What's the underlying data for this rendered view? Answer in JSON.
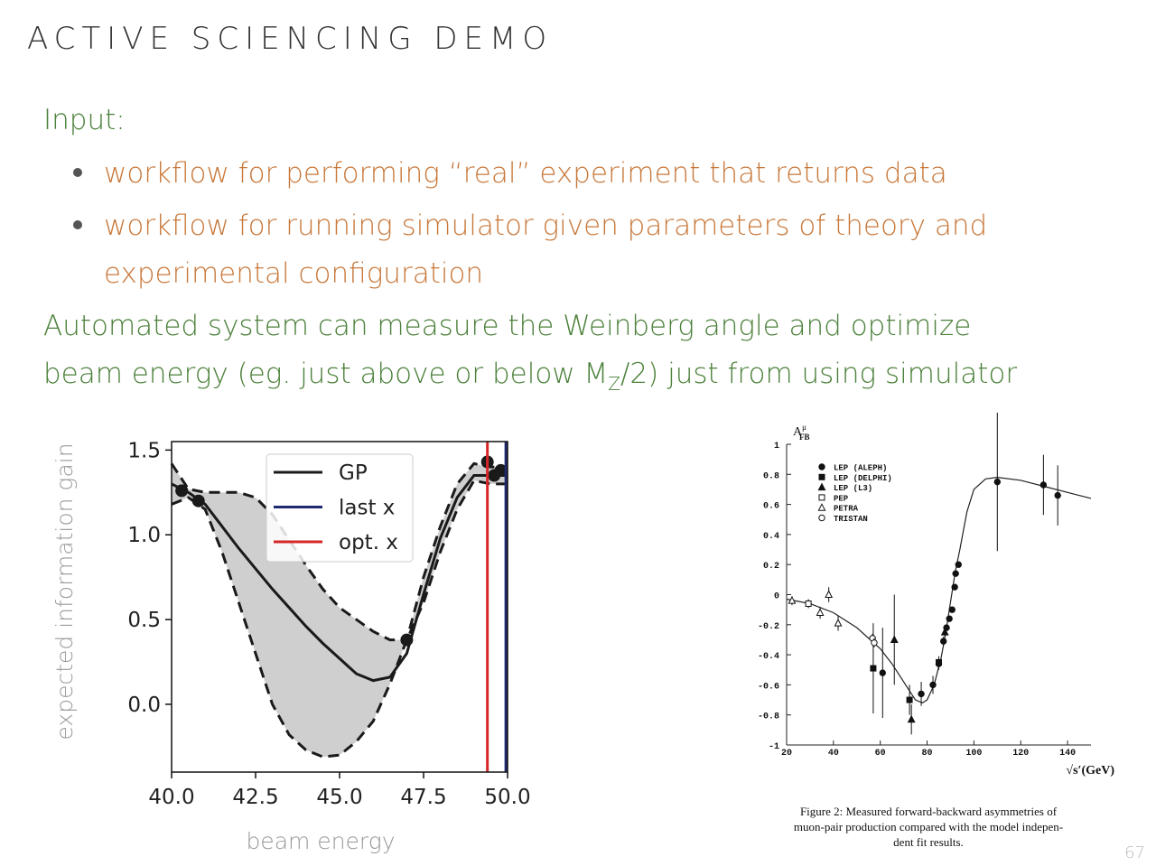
{
  "slide": {
    "title": "ACTIVE SCIENCING DEMO",
    "input_label": "Input:",
    "bullets": [
      [
        "workflow for performing “real” experiment that returns data"
      ],
      [
        "workflow for running simulator given parameters of theory and",
        "experimental configuration"
      ]
    ],
    "conclusion": [
      "Automated system can measure the Weinberg angle and optimize",
      [
        "beam energy (eg. just above or below M",
        "Z",
        "/2) just from using simulator"
      ]
    ],
    "page_number": "67"
  },
  "chart_data": [
    {
      "type": "line",
      "xlabel": "beam energy",
      "ylabel": "expected information gain",
      "xlim": [
        40,
        50
      ],
      "ylim": [
        -0.4,
        1.55
      ],
      "xticks": [
        {
          "value": 40,
          "label": "40.0"
        },
        42.5,
        {
          "value": 45,
          "label": "45.0"
        },
        47.5,
        {
          "value": 50,
          "label": "50.0"
        }
      ],
      "yticks": [
        {
          "value": 0,
          "label": "0.0"
        },
        0.5,
        {
          "value": 1,
          "label": "1.0"
        },
        1.5
      ],
      "x": [
        40,
        40.5,
        41,
        41.5,
        42,
        42.5,
        43,
        43.5,
        44,
        44.5,
        45,
        45.5,
        46,
        46.5,
        47,
        47.5,
        48,
        48.5,
        49,
        49.5,
        50
      ],
      "band_color": "#cfcfcf",
      "series": [
        {
          "name": "GP",
          "color": "#1a1a1a",
          "values": [
            1.3,
            1.25,
            1.18,
            1.05,
            0.92,
            0.8,
            0.68,
            0.57,
            0.46,
            0.36,
            0.27,
            0.18,
            0.14,
            0.16,
            0.3,
            0.65,
            0.98,
            1.22,
            1.35,
            1.35,
            1.35
          ],
          "upper": [
            1.42,
            1.27,
            1.25,
            1.25,
            1.25,
            1.22,
            1.12,
            0.97,
            0.82,
            0.68,
            0.57,
            0.5,
            0.43,
            0.38,
            0.38,
            0.75,
            1.05,
            1.3,
            1.42,
            1.4,
            1.4
          ],
          "lower": [
            1.18,
            1.22,
            1.15,
            0.9,
            0.6,
            0.3,
            0.0,
            -0.18,
            -0.27,
            -0.31,
            -0.3,
            -0.22,
            -0.1,
            0.12,
            0.38,
            0.6,
            0.9,
            1.15,
            1.32,
            1.3,
            1.3
          ]
        },
        {
          "name": "last x",
          "color": "#1f2a6e",
          "x": 49.95
        },
        {
          "name": "opt. x",
          "color": "#d62728",
          "x": 49.4
        }
      ],
      "observations": {
        "color": "#1a1a1a",
        "x": [
          40.3,
          40.8,
          47.0,
          49.4,
          49.6,
          49.8
        ],
        "y": [
          1.26,
          1.2,
          0.38,
          1.43,
          1.35,
          1.38
        ]
      },
      "legend": "upper center"
    },
    {
      "type": "scatter",
      "ylabel": "A",
      "ylabel_superscript": "μ",
      "ylabel_subscript": "FB",
      "xlabel": "√s′(GeV)",
      "xlim": [
        20,
        150
      ],
      "ylim": [
        -1,
        1
      ],
      "xticks": [
        20,
        40,
        60,
        80,
        100,
        120,
        140
      ],
      "yticks": [
        -1,
        -0.8,
        -0.6,
        -0.4,
        -0.2,
        0,
        0.2,
        0.4,
        0.6,
        0.8,
        1
      ],
      "series": [
        {
          "name": "LEP (ALEPH)",
          "marker": "circle",
          "filled": true,
          "color": "#111111",
          "x": [
            61,
            77.5,
            82.5,
            85,
            87,
            88.3,
            89.5,
            90.7,
            91.8,
            92.2,
            93.4,
            110,
            129.7,
            135.8
          ],
          "values": [
            -0.52,
            -0.66,
            -0.6,
            -0.46,
            -0.31,
            -0.22,
            -0.16,
            -0.1,
            0.05,
            0.14,
            0.2,
            0.75,
            0.73,
            0.66
          ],
          "errors": [
            0.3,
            0.08,
            0.06,
            0.04,
            0.03,
            0.02,
            0.02,
            0.02,
            0.02,
            0.02,
            0.02,
            0.46,
            0.2,
            0.2
          ]
        },
        {
          "name": "LEP (DELPHI)",
          "marker": "square",
          "filled": true,
          "color": "#111111",
          "x": [
            57,
            72.5,
            85
          ],
          "values": [
            -0.49,
            -0.7,
            -0.45
          ],
          "errors": [
            0.3,
            0.1,
            0.04
          ]
        },
        {
          "name": "LEP (L3)",
          "marker": "triangle",
          "filled": true,
          "color": "#111111",
          "x": [
            66,
            73.3,
            87.6
          ],
          "values": [
            -0.3,
            -0.83,
            -0.25
          ],
          "errors": [
            0.3,
            0.1,
            0.03
          ]
        },
        {
          "name": "PEP",
          "marker": "square",
          "filled": false,
          "color": "#111111",
          "x": [
            29.3
          ],
          "values": [
            -0.06
          ],
          "errors": [
            0.03
          ]
        },
        {
          "name": "PETRA",
          "marker": "triangle",
          "filled": false,
          "color": "#111111",
          "x": [
            22.3,
            34.3,
            38,
            42
          ],
          "values": [
            -0.04,
            -0.12,
            0.0,
            -0.19
          ],
          "errors": [
            0.03,
            0.04,
            0.05,
            0.05
          ]
        },
        {
          "name": "TRISTAN",
          "marker": "circle",
          "filled": false,
          "color": "#111111",
          "x": [
            56.7,
            57.4
          ],
          "values": [
            -0.29,
            -0.32
          ],
          "errors": [
            0.03,
            0.03
          ]
        }
      ],
      "fit": {
        "color": "#222222",
        "x": [
          20,
          30,
          40,
          50,
          60,
          65,
          70,
          75,
          78,
          80,
          83,
          86,
          88,
          90,
          91,
          92,
          94,
          97,
          100,
          105,
          110,
          120,
          130,
          140,
          150
        ],
        "values": [
          -0.03,
          -0.06,
          -0.12,
          -0.22,
          -0.36,
          -0.46,
          -0.58,
          -0.7,
          -0.72,
          -0.7,
          -0.6,
          -0.42,
          -0.25,
          -0.05,
          0.05,
          0.15,
          0.3,
          0.55,
          0.7,
          0.77,
          0.78,
          0.76,
          0.72,
          0.68,
          0.64
        ]
      },
      "legend": "upper left",
      "caption": [
        "Figure 2:  Measured forward-backward asymmetries of",
        "muon-pair production compared with the model indepen-",
        "dent fit results."
      ]
    }
  ]
}
